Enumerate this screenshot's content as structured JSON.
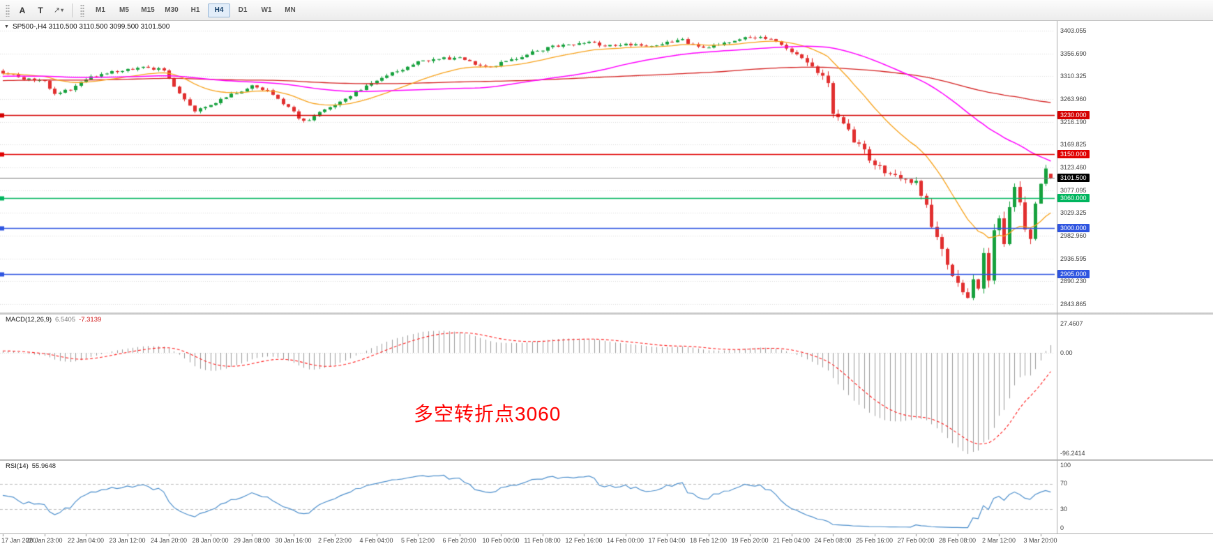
{
  "colors": {
    "up": "#16a13d",
    "down": "#e12f2f",
    "grid": "#d9d9d9",
    "macd_hist": "#9b9b9b",
    "macd_signal": "#ff1e1e",
    "rsi": "#4d8fcc",
    "bid_line": "#7a7a7a"
  },
  "toolbar": {
    "tools": [
      {
        "label": "A"
      },
      {
        "label": "T"
      },
      {
        "label": "↗"
      }
    ],
    "dropdown_caret": "▾",
    "timeframes": [
      "M1",
      "M5",
      "M15",
      "M30",
      "H1",
      "H4",
      "D1",
      "W1",
      "MN"
    ],
    "active_timeframe": "H4"
  },
  "chart": {
    "collapse_icon": "▼",
    "header": "SP500-,H4  3110.500 3110.500 3099.500 3101.500",
    "price_axis": [
      "3403.055",
      "3356.690",
      "3310.325",
      "3263.960",
      "3216.190",
      "3169.825",
      "3123.460",
      "3077.095",
      "3029.325",
      "2982.960",
      "2936.595",
      "2890.230",
      "2843.865"
    ],
    "current_price": {
      "value": 3101.5,
      "label": "3101.500",
      "bg": "#000000"
    },
    "levels": [
      {
        "value": 3230,
        "label": "3230.000",
        "color": "#d40000"
      },
      {
        "value": 3150,
        "label": "3150.000",
        "color": "#e00000"
      },
      {
        "value": 3060,
        "label": "3060.000",
        "color": "#00b55e"
      },
      {
        "value": 3000,
        "label": "3000.000",
        "color": "#2f55e0"
      },
      {
        "value": 2905,
        "label": "2905.000",
        "color": "#2f55e0"
      }
    ],
    "annotation": {
      "text": "多空转折点3060",
      "color": "#ff0000"
    },
    "time_axis": [
      "17 Jan 2020",
      "20 Jan 23:00",
      "22 Jan 04:00",
      "23 Jan 12:00",
      "24 Jan 20:00",
      "28 Jan 00:00",
      "29 Jan 08:00",
      "30 Jan 16:00",
      "2 Feb 23:00",
      "4 Feb 04:00",
      "5 Feb 12:00",
      "6 Feb 20:00",
      "10 Feb 00:00",
      "11 Feb 08:00",
      "12 Feb 16:00",
      "14 Feb 00:00",
      "17 Feb 04:00",
      "18 Feb 12:00",
      "19 Feb 20:00",
      "21 Feb 04:00",
      "24 Feb 08:00",
      "25 Feb 16:00",
      "27 Feb 00:00",
      "28 Feb 08:00",
      "2 Mar 12:00",
      "3 Mar 20:00"
    ]
  },
  "macd": {
    "label": "MACD(12,26,9)",
    "value_main": "6.5405",
    "value_signal": "-7.3139",
    "axis": [
      "27.4607",
      "0.00",
      "-96.2414"
    ]
  },
  "rsi": {
    "label": "RSI(14)",
    "value": "55.9648",
    "axis": [
      "100",
      "70",
      "30",
      "0"
    ]
  },
  "chart_data": {
    "type": "candlestick",
    "title": "SP500-,H4",
    "symbol": "SP500-",
    "timeframe": "H4",
    "bars": 203,
    "price_range": [
      2843.865,
      3403.055
    ],
    "grid_step": 46.365,
    "last_bar": {
      "open": 3110.5,
      "high": 3110.5,
      "low": 3099.5,
      "close": 3101.5
    },
    "extremes": {
      "high": {
        "bar": 146,
        "price": 3393
      },
      "low": {
        "bar": 186,
        "price": 2855
      }
    },
    "close_anchors": [
      [
        0,
        3318
      ],
      [
        4,
        3305
      ],
      [
        8,
        3300
      ],
      [
        10,
        3272
      ],
      [
        14,
        3288
      ],
      [
        16,
        3305
      ],
      [
        20,
        3315
      ],
      [
        24,
        3325
      ],
      [
        28,
        3328
      ],
      [
        31,
        3322
      ],
      [
        34,
        3275
      ],
      [
        37,
        3240
      ],
      [
        40,
        3252
      ],
      [
        44,
        3272
      ],
      [
        48,
        3290
      ],
      [
        51,
        3282
      ],
      [
        54,
        3255
      ],
      [
        58,
        3216
      ],
      [
        61,
        3235
      ],
      [
        64,
        3252
      ],
      [
        68,
        3278
      ],
      [
        72,
        3302
      ],
      [
        76,
        3320
      ],
      [
        80,
        3338
      ],
      [
        84,
        3345
      ],
      [
        88,
        3348
      ],
      [
        91,
        3336
      ],
      [
        94,
        3330
      ],
      [
        98,
        3344
      ],
      [
        102,
        3358
      ],
      [
        106,
        3370
      ],
      [
        110,
        3376
      ],
      [
        113,
        3380
      ],
      [
        116,
        3372
      ],
      [
        120,
        3376
      ],
      [
        124,
        3370
      ],
      [
        127,
        3378
      ],
      [
        131,
        3383
      ],
      [
        134,
        3368
      ],
      [
        137,
        3372
      ],
      [
        141,
        3385
      ],
      [
        144,
        3390
      ],
      [
        146,
        3391
      ],
      [
        149,
        3380
      ],
      [
        152,
        3360
      ],
      [
        155,
        3337
      ],
      [
        158,
        3308
      ],
      [
        159,
        3290
      ],
      [
        160,
        3235
      ],
      [
        162,
        3210
      ],
      [
        164,
        3180
      ],
      [
        166,
        3155
      ],
      [
        168,
        3128
      ],
      [
        170,
        3116
      ],
      [
        172,
        3108
      ],
      [
        174,
        3098
      ],
      [
        176,
        3090
      ],
      [
        178,
        3040
      ],
      [
        180,
        2980
      ],
      [
        182,
        2925
      ],
      [
        184,
        2882
      ],
      [
        186,
        2858
      ],
      [
        187,
        2902
      ],
      [
        188,
        2870
      ],
      [
        189,
        2938
      ],
      [
        190,
        2890
      ],
      [
        191,
        2985
      ],
      [
        192,
        3028
      ],
      [
        193,
        2968
      ],
      [
        194,
        3048
      ],
      [
        195,
        3088
      ],
      [
        196,
        3056
      ],
      [
        197,
        3000
      ],
      [
        198,
        2984
      ],
      [
        199,
        3046
      ],
      [
        200,
        3096
      ],
      [
        201,
        3126
      ],
      [
        202,
        3110
      ]
    ],
    "moving_averages": [
      {
        "name": "fast",
        "type": "ema",
        "period": 20,
        "color": "#f7a21b"
      },
      {
        "name": "mid",
        "type": "sma",
        "period": 60,
        "color": "#ff00ff"
      },
      {
        "name": "slow",
        "type": "sma",
        "period": 130,
        "color": "#d42020"
      }
    ],
    "indicators": [
      {
        "name": "MACD",
        "params": [
          12,
          26,
          9
        ],
        "axis_max": 27.4607,
        "axis_min": -96.2414,
        "current": 6.5405,
        "signal_current": -7.3139
      },
      {
        "name": "RSI",
        "params": [
          14
        ],
        "levels": [
          70,
          30
        ],
        "current": 55.9648
      }
    ]
  }
}
